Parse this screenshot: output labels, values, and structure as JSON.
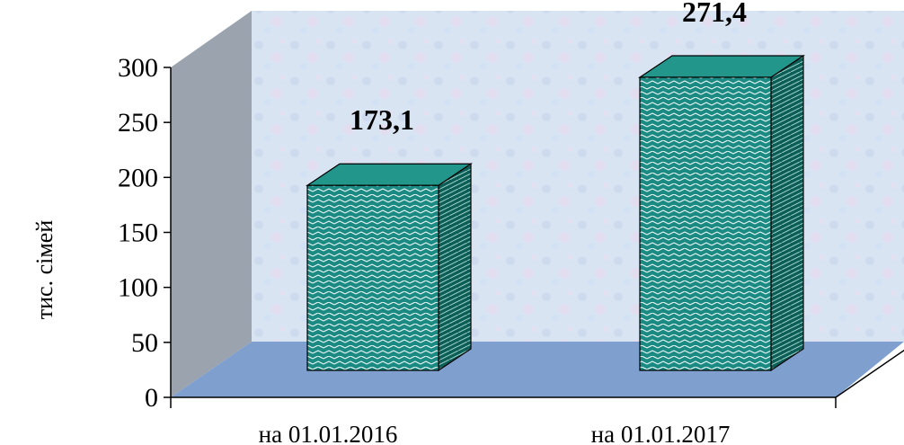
{
  "chart_data": {
    "type": "bar",
    "categories": [
      "на 01.01.2016",
      "на 01.01.2017"
    ],
    "values": [
      173.1,
      271.4
    ],
    "data_labels": [
      "173,1",
      "271,4"
    ],
    "title": "",
    "xlabel": "",
    "ylabel": "тис. сімей",
    "ylim": [
      0,
      300
    ],
    "yticks": [
      "0",
      "50",
      "100",
      "150",
      "200",
      "250",
      "300"
    ],
    "three_d": true,
    "grid": false,
    "legend": "none"
  },
  "colors": {
    "bar_front": "#1b8a82",
    "bar_top": "#23968c",
    "bar_side": "#0d5e56",
    "back_wall": "#d9e4f3",
    "side_wall": "#9aa3ae",
    "floor": "#7f9fcf"
  }
}
